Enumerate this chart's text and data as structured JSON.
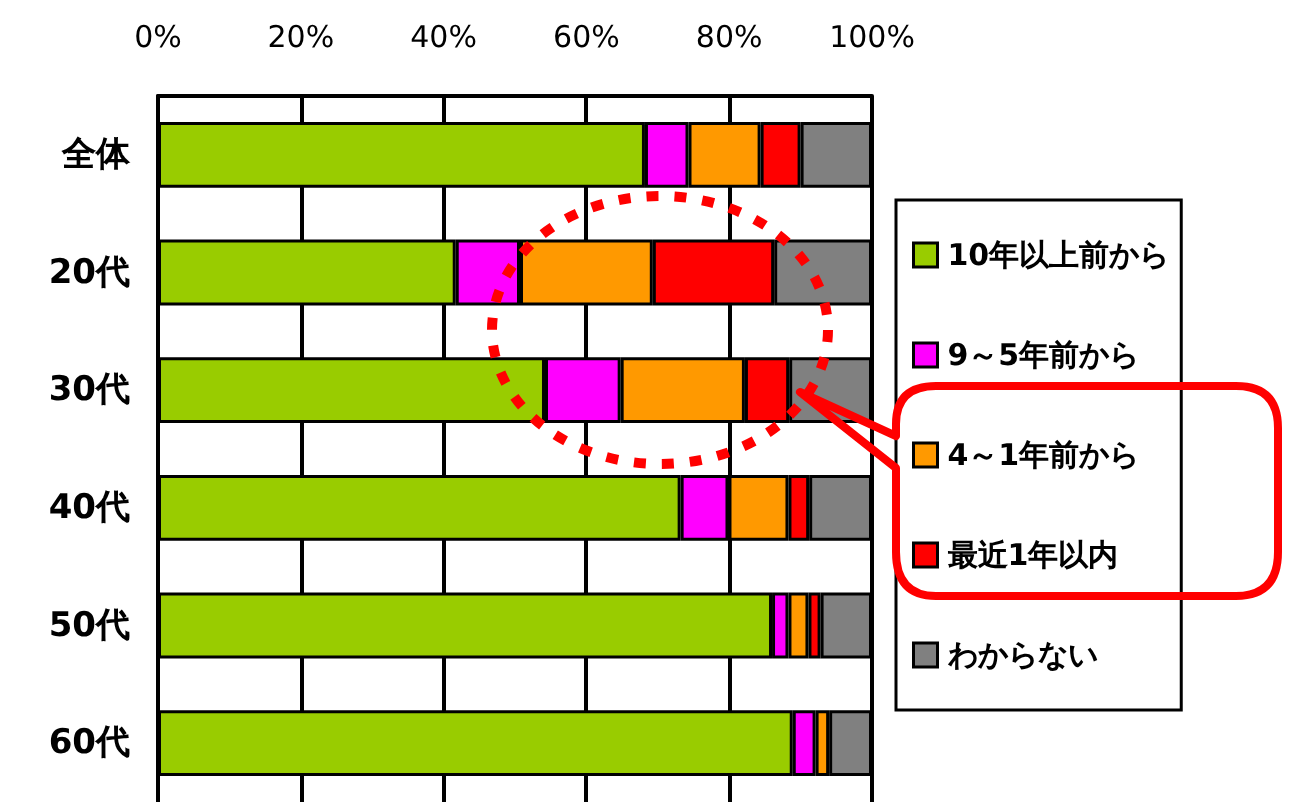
{
  "chart_data": {
    "type": "bar",
    "orientation": "horizontal",
    "stacked": true,
    "categories": [
      "全体",
      "20代",
      "30代",
      "40代",
      "50代",
      "60代"
    ],
    "series": [
      {
        "name": "10年以上前から",
        "color": "#99cc00",
        "values": [
          68.2,
          41.7,
          54.2,
          73.2,
          86.0,
          88.9
        ]
      },
      {
        "name": "9～5年前から",
        "color": "#ff00ff",
        "values": [
          6.1,
          9.0,
          10.6,
          6.7,
          2.3,
          3.2
        ]
      },
      {
        "name": "4～1年前から",
        "color": "#ff9900",
        "values": [
          10.1,
          18.6,
          17.4,
          8.4,
          2.8,
          1.9
        ]
      },
      {
        "name": "最近1年以内",
        "color": "#ff0000",
        "values": [
          5.6,
          17.0,
          6.2,
          2.9,
          1.7,
          null
        ]
      },
      {
        "name": "わからない",
        "color": "#808080",
        "values": [
          10.0,
          13.7,
          11.6,
          8.8,
          7.2,
          6.0
        ]
      }
    ],
    "xlim": [
      0,
      100
    ],
    "xticks": [
      {
        "value": 0,
        "label": "0%"
      },
      {
        "value": 20,
        "label": "20%"
      },
      {
        "value": 40,
        "label": "40%"
      },
      {
        "value": 60,
        "label": "60%"
      },
      {
        "value": 80,
        "label": "80%"
      },
      {
        "value": 100,
        "label": "100%"
      }
    ],
    "grid": "x",
    "legend": "right"
  }
}
